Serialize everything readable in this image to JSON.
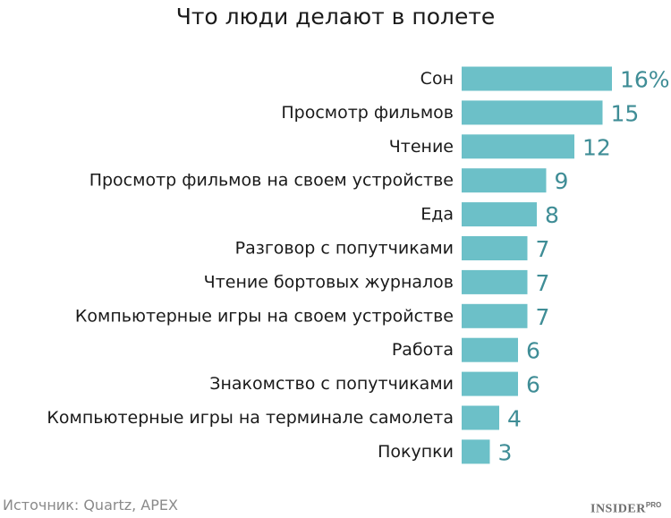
{
  "chart_data": {
    "type": "bar",
    "orientation": "horizontal",
    "title": "Что люди делают в полете",
    "categories": [
      "Сон",
      "Просмотр фильмов",
      "Чтение",
      "Просмотр фильмов на своем устройстве",
      "Еда",
      "Разговор с попутчиками",
      "Чтение бортовых журналов",
      "Компьютерные игры на своем устройстве",
      "Работа",
      "Знакомство с попутчиками",
      "Компьютерные игры на терминале самолета",
      "Покупки"
    ],
    "values": [
      16,
      15,
      12,
      9,
      8,
      7,
      7,
      7,
      6,
      6,
      4,
      3
    ],
    "value_labels": [
      "16%",
      "15",
      "12",
      "9",
      "8",
      "7",
      "7",
      "7",
      "6",
      "6",
      "4",
      "3"
    ],
    "xlim": [
      0,
      16
    ],
    "grid": false,
    "legend": "none",
    "bar_color": "#6cc0c8",
    "value_label_color": "#3f8d96"
  },
  "footer": {
    "source": "Источник: Quartz, APEX",
    "brand": "INSIDER",
    "brand_sup": "PRO"
  }
}
